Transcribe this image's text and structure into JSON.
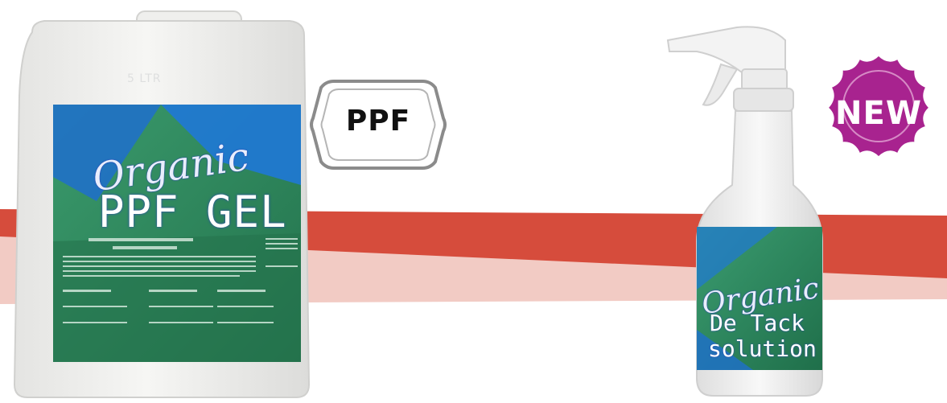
{
  "scene": {
    "stripe_red_color": "#d64c3c",
    "stripe_pink_color": "#f2cbc4",
    "jug": {
      "label_script": "Organic",
      "label_title": "PPF GEL",
      "embossed_mark": "5 LTR",
      "label_bg_color": "#2e8f5e",
      "accent_color": "#1e6fcc"
    },
    "bottle": {
      "label_script": "Organic",
      "label_line1": "De Tack",
      "label_line2": "solution"
    },
    "badges": {
      "ppf_text": "PPF",
      "new_text": "NEW",
      "new_color": "#a8238f"
    }
  }
}
